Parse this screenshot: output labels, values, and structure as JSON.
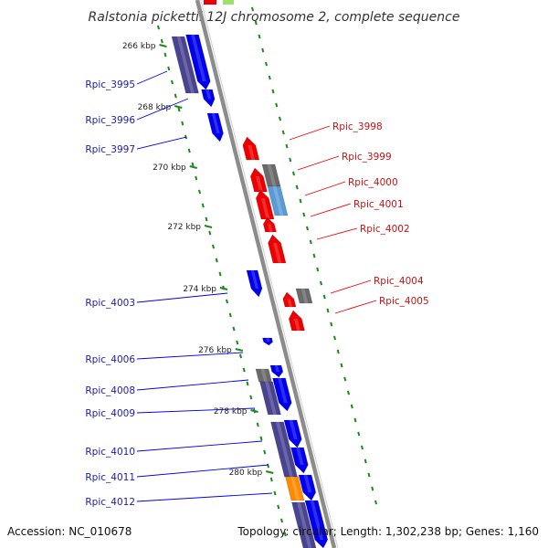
{
  "title": "Ralstonia pickettii 12J chromosome 2, complete sequence",
  "footer": {
    "accession": "Accession: NC_010678",
    "summary": "Topology: circular; Length: 1,302,238 bp; Genes: 1,160"
  },
  "ticks": [
    "266 kbp",
    "268 kbp",
    "270 kbp",
    "272 kbp",
    "274 kbp",
    "276 kbp",
    "278 kbp",
    "280 kbp"
  ],
  "colors": {
    "forward_gene": "#0000ee",
    "reverse_gene": "#ee0000",
    "forward_label": "#1a1ab0",
    "reverse_label": "#cc1111",
    "cds_dark": "#4a4490",
    "pseudo_gray": "#6a6a6a",
    "light_blue": "#5b9bd5",
    "orange": "#ff8c00",
    "green_dots": "#1a8a1a",
    "backbone": "#8c8c8c"
  },
  "forward_labels": [
    "Rpic_3995",
    "Rpic_3996",
    "Rpic_3997",
    "Rpic_4003",
    "Rpic_4006",
    "Rpic_4008",
    "Rpic_4009",
    "Rpic_4010",
    "Rpic_4011",
    "Rpic_4012"
  ],
  "reverse_labels": [
    "Rpic_3998",
    "Rpic_3999",
    "Rpic_4000",
    "Rpic_4001",
    "Rpic_4002",
    "Rpic_4004",
    "Rpic_4005"
  ]
}
